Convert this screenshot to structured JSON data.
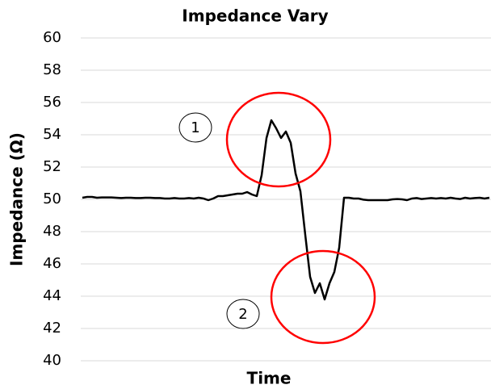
{
  "chart_data": {
    "type": "line",
    "title": "Impedance Vary",
    "xlabel": "Time",
    "ylabel": "Impedance (Ω)",
    "annotations": [
      "1",
      "2"
    ],
    "series": [
      {
        "name": null,
        "color": "#000000",
        "values": [
          50.1,
          50.15,
          50.15,
          50.1,
          50.12,
          50.12,
          50.12,
          50.1,
          50.08,
          50.1,
          50.1,
          50.08,
          50.08,
          50.1,
          50.1,
          50.08,
          50.08,
          50.05,
          50.05,
          50.08,
          50.05,
          50.05,
          50.08,
          50.05,
          50.1,
          50.05,
          49.95,
          50.05,
          50.2,
          50.2,
          50.25,
          50.3,
          50.35,
          50.35,
          50.45,
          50.3,
          50.2,
          51.5,
          53.8,
          54.9,
          54.4,
          53.8,
          54.2,
          53.5,
          51.6,
          50.5,
          47.8,
          45.2,
          44.2,
          44.8,
          43.8,
          44.8,
          45.5,
          47,
          50.1,
          50.1,
          50.05,
          50.05,
          49.98,
          49.95,
          49.95,
          49.95,
          49.95,
          49.95,
          50,
          50.02,
          50,
          49.95,
          50.05,
          50.08,
          50.02,
          50.05,
          50.08,
          50.05,
          50.08,
          50.05,
          50.1,
          50.05,
          50.02,
          50.1,
          50.05,
          50.08,
          50.1,
          50.05,
          50.1
        ]
      }
    ],
    "ylim": [
      40,
      60
    ],
    "yticks": [
      40,
      42,
      44,
      46,
      48,
      50,
      52,
      54,
      56,
      58,
      60
    ],
    "grid": true
  }
}
